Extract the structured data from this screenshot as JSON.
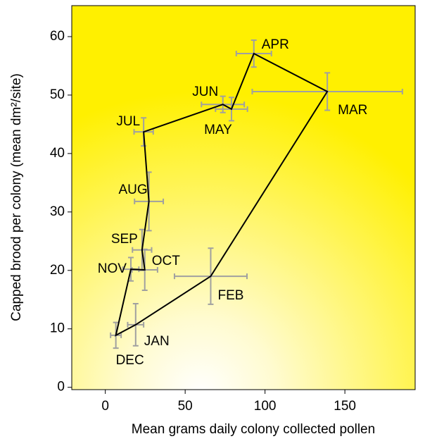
{
  "chart_data": {
    "type": "scatter",
    "xlabel": "Mean grams daily colony collected pollen",
    "ylabel": "Capped brood per colony (mean dm²/site)",
    "xlim": [
      -21,
      194
    ],
    "ylim": [
      -0.4,
      65.3
    ],
    "xticks": [
      0,
      50,
      100,
      150
    ],
    "yticks": [
      0,
      10,
      20,
      30,
      40,
      50,
      60
    ],
    "series": [
      {
        "color": "#000000",
        "error_color": "#a0a0a0",
        "point_labels": [
          "JAN",
          "FEB",
          "MAR",
          "APR",
          "MAY",
          "JUN",
          "JUL",
          "AUG",
          "SEP",
          "OCT",
          "NOV",
          "DEC"
        ],
        "x": [
          19,
          66,
          139,
          93,
          79,
          73.6,
          24,
          27.3,
          23,
          24.7,
          16,
          6.6
        ],
        "y": [
          10.7,
          19,
          50.6,
          57.1,
          47.6,
          48.4,
          43.7,
          31.8,
          23.5,
          20.1,
          20.2,
          8.9
        ],
        "x_err": [
          5,
          22.7,
          47,
          11,
          10,
          13.4,
          6,
          9,
          6,
          8,
          5,
          3.3
        ],
        "y_err": [
          3.6,
          4.8,
          3.2,
          2.3,
          2,
          1.4,
          2.4,
          5,
          3.5,
          3.5,
          2,
          2.2
        ]
      }
    ]
  }
}
